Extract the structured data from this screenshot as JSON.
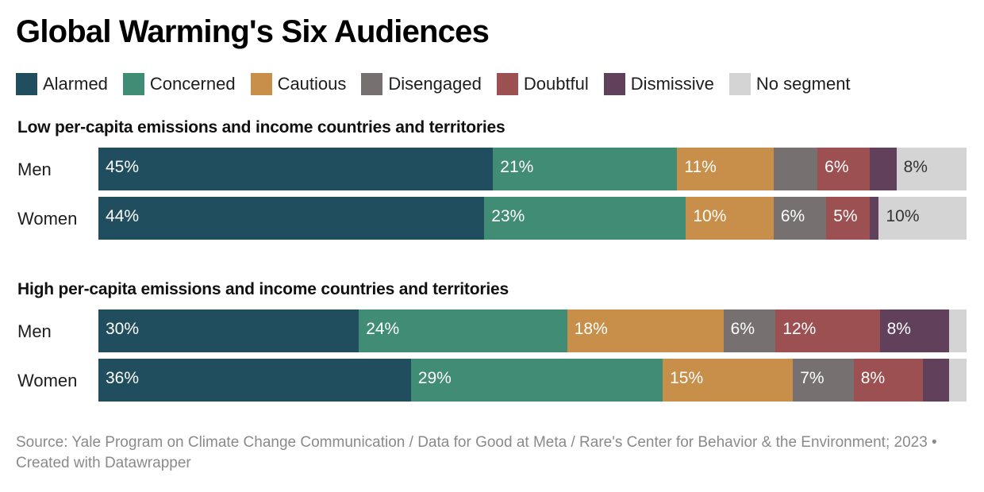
{
  "title": "Global Warming's Six Audiences",
  "legend": [
    {
      "label": "Alarmed",
      "color": "#214e5e"
    },
    {
      "label": "Concerned",
      "color": "#418c74"
    },
    {
      "label": "Cautious",
      "color": "#c88f4b"
    },
    {
      "label": "Disengaged",
      "color": "#767170"
    },
    {
      "label": "Doubtful",
      "color": "#9d5052"
    },
    {
      "label": "Dismissive",
      "color": "#60405b"
    },
    {
      "label": "No segment",
      "color": "#d4d4d4"
    }
  ],
  "chart_data": {
    "type": "bar",
    "orientation": "horizontal",
    "stacked": true,
    "title": "Global Warming's Six Audiences",
    "xlim": [
      0,
      100
    ],
    "unit": "%",
    "series_names": [
      "Alarmed",
      "Concerned",
      "Cautious",
      "Disengaged",
      "Doubtful",
      "Dismissive",
      "No segment"
    ],
    "groups": [
      {
        "title": "Low per-capita emissions and income countries and territories",
        "rows": [
          {
            "label": "Men",
            "values": [
              45,
              21,
              11,
              5,
              6,
              3,
              8
            ],
            "labels": [
              "45%",
              "21%",
              "11%",
              "",
              "6%",
              "",
              "8%"
            ]
          },
          {
            "label": "Women",
            "values": [
              44,
              23,
              10,
              6,
              5,
              1,
              10
            ],
            "labels": [
              "44%",
              "23%",
              "10%",
              "6%",
              "5%",
              "",
              "10%"
            ]
          }
        ]
      },
      {
        "title": "High per-capita emissions and income countries and territories",
        "rows": [
          {
            "label": "Men",
            "values": [
              30,
              24,
              18,
              6,
              12,
              8,
              2
            ],
            "labels": [
              "30%",
              "24%",
              "18%",
              "6%",
              "12%",
              "8%",
              ""
            ]
          },
          {
            "label": "Women",
            "values": [
              36,
              29,
              15,
              7,
              8,
              3,
              2
            ],
            "labels": [
              "36%",
              "29%",
              "15%",
              "7%",
              "8%",
              "",
              ""
            ]
          }
        ]
      }
    ]
  },
  "footer": "Source: Yale Program on Climate Change Communication / Data for Good at Meta / Rare's Center for Behavior & the Environment; 2023 • Created with Datawrapper"
}
